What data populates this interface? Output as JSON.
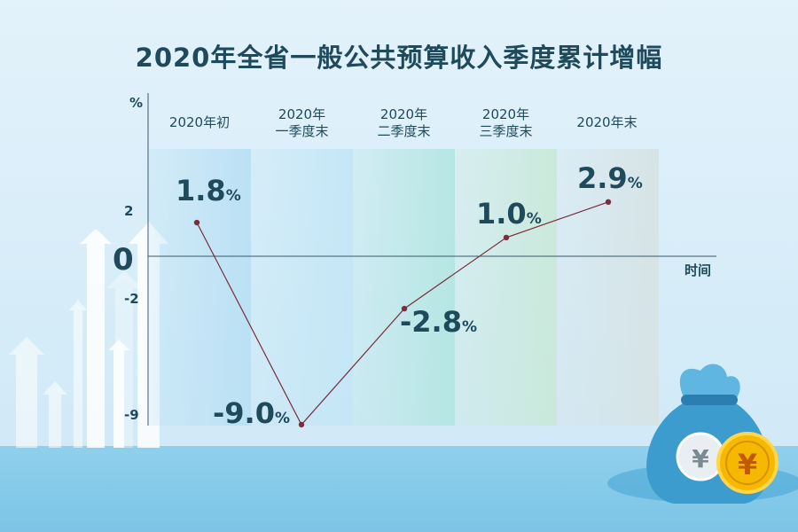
{
  "title": "2020年全省一般公共预算收入季度累计增幅",
  "chart_data": {
    "type": "line",
    "title": "2020年全省一般公共预算收入季度累计增幅",
    "ylabel": "%",
    "xlabel": "时间",
    "zero_label": "0",
    "yticks": [
      {
        "value": 2,
        "label": "2"
      },
      {
        "value": -2,
        "label": "-2"
      },
      {
        "value": -9,
        "label": "-9"
      }
    ],
    "ylim": [
      -9,
      2.9
    ],
    "categories": [
      [
        "2020年初"
      ],
      [
        "2020年",
        "一季度末"
      ],
      [
        "2020年",
        "二季度末"
      ],
      [
        "2020年",
        "三季度末"
      ],
      [
        "2020年末"
      ]
    ],
    "values": [
      1.8,
      -9.0,
      -2.8,
      1.0,
      2.9
    ],
    "data_labels": [
      "1.8",
      "-9.0",
      "-2.8",
      "1.0",
      "2.9"
    ],
    "unit_suffix": "%",
    "legend": "none",
    "grid": false
  },
  "colors": {
    "line": "#7a2e3c",
    "text": "#1e4a5c",
    "column_tints": [
      "#b9e0f4",
      "#c3e6f6",
      "#b4e6e2",
      "#c9e9d9",
      "#d6e3e5"
    ]
  }
}
